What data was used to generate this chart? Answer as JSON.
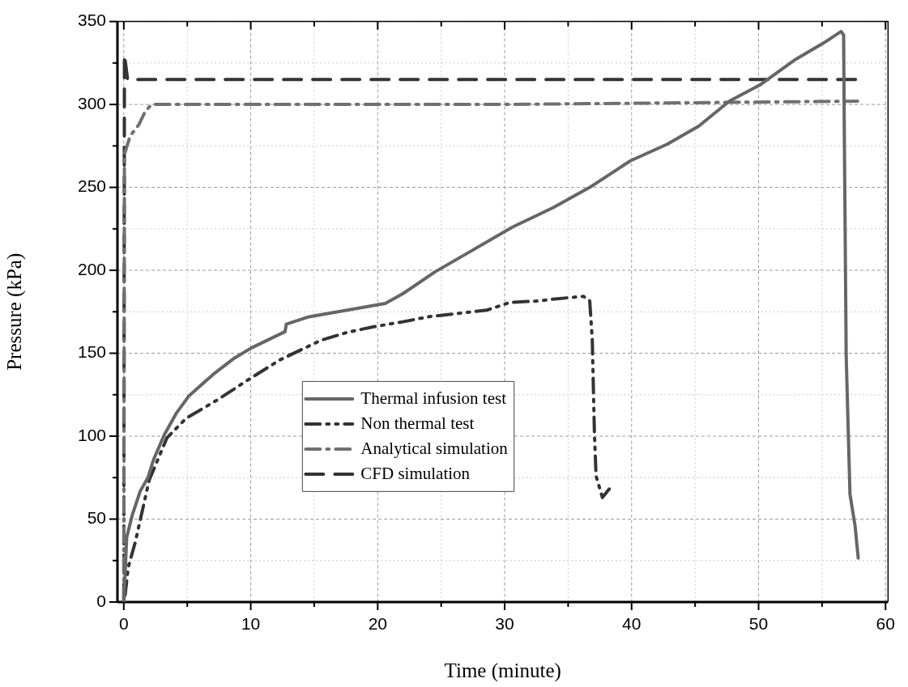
{
  "chart_data": {
    "type": "line",
    "xlabel": "Time (minute)",
    "ylabel": "Pressure (kPa)",
    "xlim": [
      -0.5,
      60.2
    ],
    "ylim": [
      0,
      350
    ],
    "xticks": [
      0,
      {
        "value": 5,
        "label": null
      },
      10,
      {
        "value": 15,
        "label": null
      },
      20,
      {
        "value": 25,
        "label": null
      },
      30,
      {
        "value": 35,
        "label": null
      },
      40,
      {
        "value": 45,
        "label": null
      },
      50,
      {
        "value": 55,
        "label": null
      },
      60
    ],
    "yticks": [
      0,
      {
        "value": 25,
        "label": null
      },
      50,
      {
        "value": 75,
        "label": null
      },
      100,
      {
        "value": 125,
        "label": null
      },
      150,
      {
        "value": 175,
        "label": null
      },
      200,
      {
        "value": 225,
        "label": null
      },
      250,
      {
        "value": 275,
        "label": null
      },
      300,
      {
        "value": 325,
        "label": null
      },
      350
    ],
    "grid": true,
    "legend": "center left",
    "marker": "none",
    "series": [
      {
        "name": "Thermal infusion test",
        "color": "#666666",
        "line_style": "solid",
        "x": [
          0,
          0.23,
          0.65,
          1.3,
          1.9,
          2.35,
          3.2,
          4.15,
          5.1,
          7,
          8.7,
          10,
          12.7,
          12.8,
          14.6,
          17.6,
          20.6,
          22,
          24.5,
          26.9,
          30.6,
          33.8,
          36.7,
          39.9,
          42.8,
          45.3,
          47.7,
          50.1,
          52.8,
          55.3,
          56.5,
          56.7,
          56.75,
          56.9,
          57.2,
          57.6,
          57.85
        ],
        "values": [
          0,
          39,
          52,
          67,
          75,
          86,
          101,
          114,
          124,
          137,
          147,
          153,
          163,
          167.5,
          172,
          176,
          180,
          186,
          199,
          209.6,
          226,
          237.7,
          250,
          266,
          276,
          287,
          302,
          311.7,
          326.6,
          337.9,
          344,
          341.8,
          287,
          149,
          65,
          46,
          26.5
        ]
      },
      {
        "name": "Non thermal test",
        "color": "#333333",
        "line_style": "dashdotdot",
        "x": [
          0.1,
          0.35,
          0.9,
          2,
          3.4,
          4.9,
          7.4,
          10,
          12.3,
          15.5,
          17.6,
          19.7,
          22,
          24,
          28.6,
          30.4,
          32.8,
          33.8,
          36.2,
          36.7,
          36.9,
          37.07,
          37.2,
          37.7,
          38.5
        ],
        "values": [
          4,
          21,
          36,
          73.5,
          99,
          110.7,
          122,
          135,
          146,
          157.7,
          162.6,
          166,
          169,
          172,
          176,
          180.6,
          181.6,
          182.6,
          184.3,
          181.6,
          158.5,
          102,
          76,
          63,
          70.6
        ]
      },
      {
        "name": "Analytical simulation",
        "color": "#707070",
        "line_style": "dashdot",
        "x": [
          0,
          0.05,
          0.5,
          1.2,
          1.7,
          2.2,
          30,
          57.8
        ],
        "values": [
          0,
          270,
          281,
          288,
          296,
          300,
          300,
          302
        ]
      },
      {
        "name": "CFD simulation",
        "color": "#333333",
        "line_style": "dashed",
        "x": [
          0,
          0.05,
          0.3,
          57.8
        ],
        "values": [
          0,
          330,
          315,
          315
        ]
      }
    ]
  }
}
